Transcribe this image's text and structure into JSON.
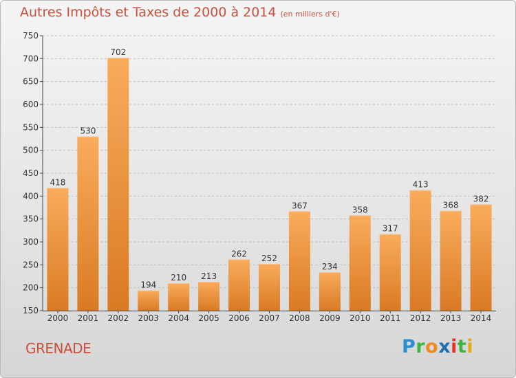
{
  "header": {
    "title": "Autres Impôts et Taxes de 2000 à 2014",
    "unit": "(en milliers d'€)"
  },
  "footer": {
    "place": "GRENADE",
    "logo_letters": [
      "P",
      "r",
      "o",
      "x",
      "i",
      "t",
      "i"
    ],
    "logo_colors": [
      "#2a8fd0",
      "#3fb33f",
      "#f08a1e",
      "#1a6fb5",
      "#e3322b",
      "#3fb33f",
      "#e5a91b"
    ]
  },
  "colors": {
    "title": "#c8503c",
    "bar_top": "#f9ac5c",
    "bar_bottom": "#d97a23",
    "grid": "#bdbdbd",
    "axis": "#444444"
  },
  "chart_data": {
    "type": "bar",
    "title": "Autres Impôts et Taxes de 2000 à 2014",
    "subtitle": "(en milliers d'€)",
    "categories": [
      "2000",
      "2001",
      "2002",
      "2003",
      "2004",
      "2005",
      "2006",
      "2007",
      "2008",
      "2009",
      "2010",
      "2011",
      "2012",
      "2013",
      "2014"
    ],
    "values": [
      418,
      530,
      702,
      194,
      210,
      213,
      262,
      252,
      367,
      234,
      358,
      317,
      413,
      368,
      382
    ],
    "ylim": [
      150,
      750
    ],
    "yticks": [
      150,
      200,
      250,
      300,
      350,
      400,
      450,
      500,
      550,
      600,
      650,
      700,
      750
    ],
    "grid": true,
    "data_labels": true
  }
}
